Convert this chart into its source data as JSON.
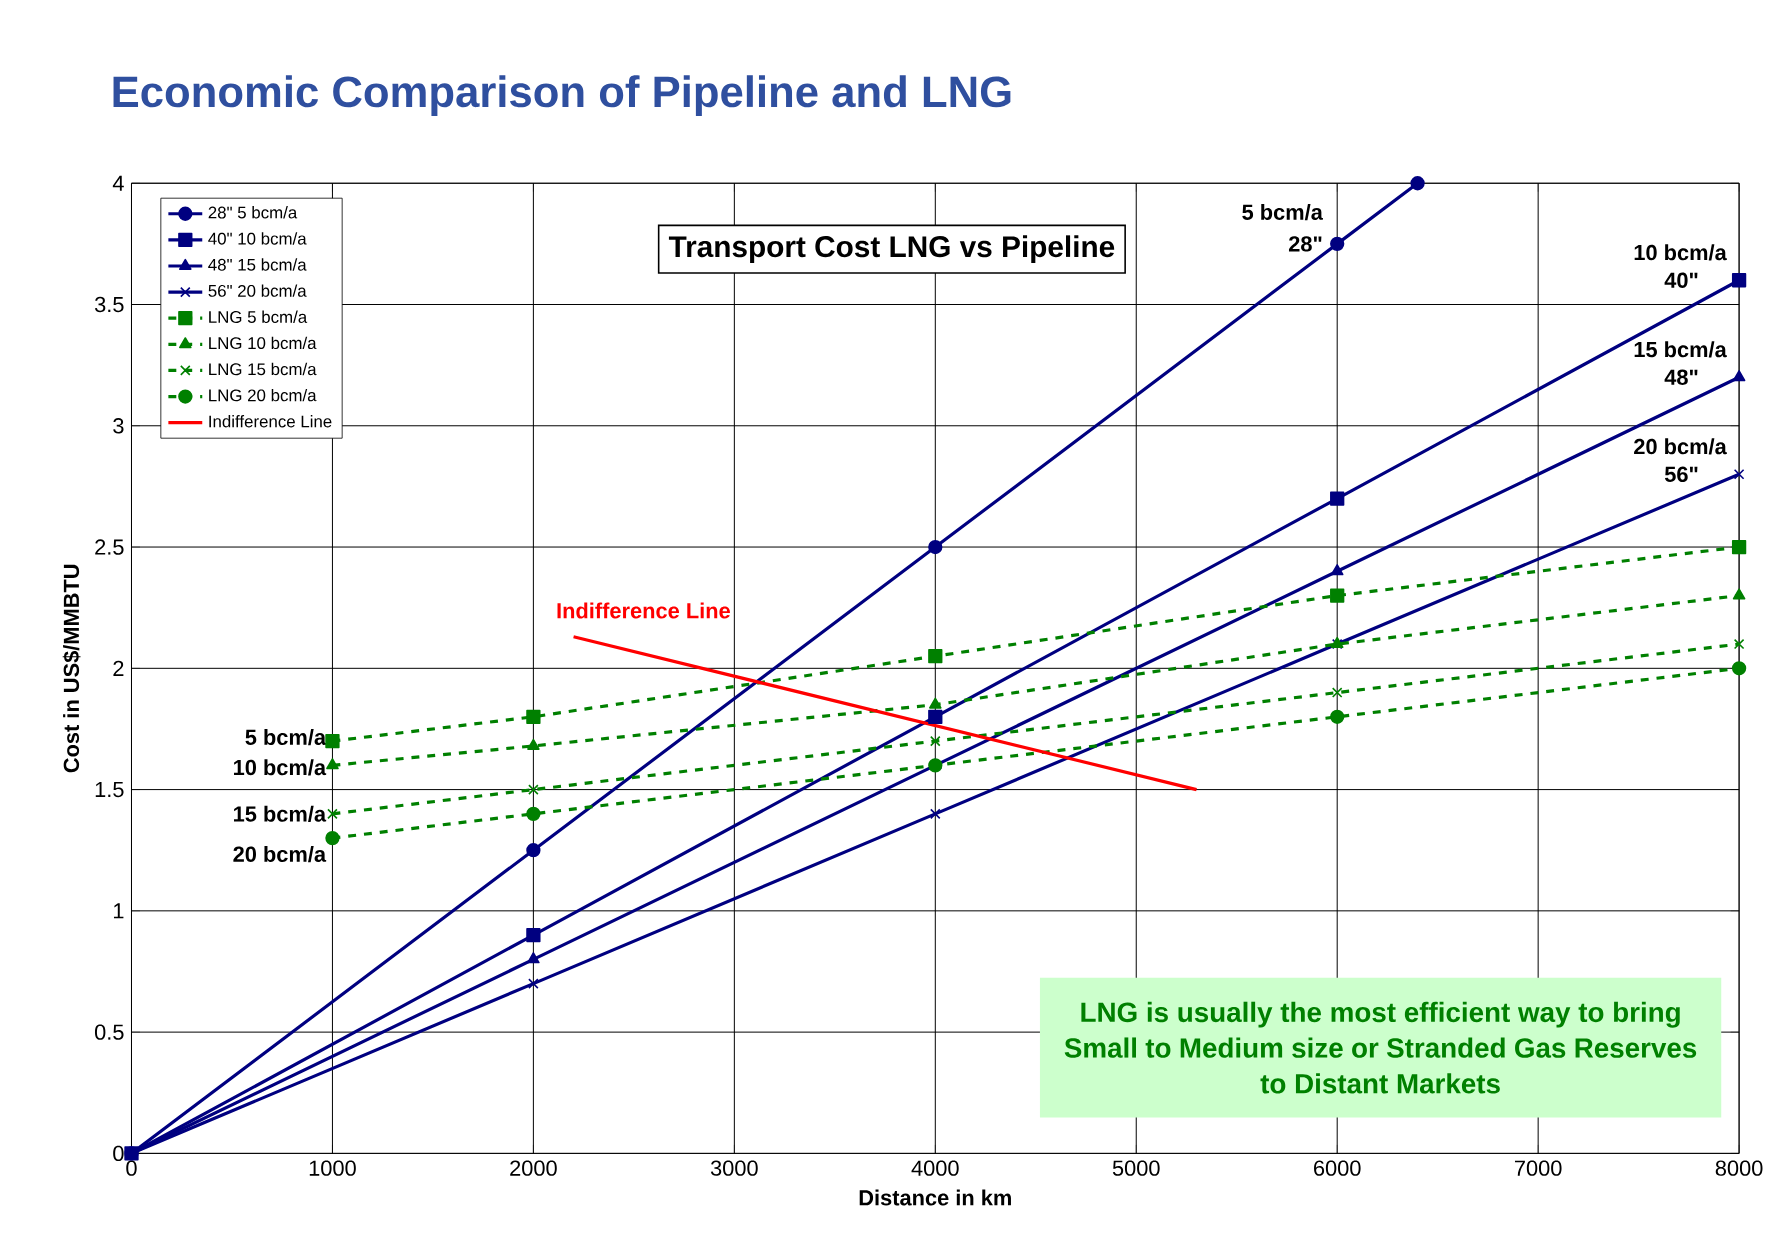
{
  "chart_data": {
    "type": "line",
    "title": "Economic Comparison of Pipeline and LNG",
    "subtitle": "Transport Cost LNG vs Pipeline",
    "xlabel": "Distance in km",
    "ylabel": "Cost in US$/MMBTU",
    "xlim": [
      0,
      8000
    ],
    "ylim": [
      0,
      4
    ],
    "xticks": [
      0,
      1000,
      2000,
      3000,
      4000,
      5000,
      6000,
      7000,
      8000
    ],
    "yticks": [
      0,
      0.5,
      1,
      1.5,
      2,
      2.5,
      3,
      3.5,
      4
    ],
    "grid": true,
    "legend": "top left",
    "series": [
      {
        "name": "28\" 5 bcm/a",
        "color": "#000080",
        "marker": "circle",
        "line_style": "solid",
        "x": [
          0,
          2000,
          4000,
          6000,
          6400
        ],
        "values": [
          0,
          1.25,
          2.5,
          3.75,
          4.0
        ]
      },
      {
        "name": "40\" 10 bcm/a",
        "color": "#000080",
        "marker": "square",
        "line_style": "solid",
        "x": [
          0,
          2000,
          4000,
          6000,
          8000
        ],
        "values": [
          0,
          0.9,
          1.8,
          2.7,
          3.6
        ]
      },
      {
        "name": "48\" 15 bcm/a",
        "color": "#000080",
        "marker": "triangle",
        "line_style": "solid",
        "x": [
          0,
          2000,
          4000,
          6000,
          8000
        ],
        "values": [
          0,
          0.8,
          1.6,
          2.4,
          3.2
        ]
      },
      {
        "name": "56\" 20 bcm/a",
        "color": "#000080",
        "marker": "cross",
        "line_style": "solid",
        "x": [
          0,
          2000,
          4000,
          6000,
          8000
        ],
        "values": [
          0,
          0.7,
          1.4,
          2.1,
          2.8
        ]
      },
      {
        "name": "LNG 5 bcm/a",
        "color": "#008000",
        "marker": "square",
        "line_style": "dashed",
        "x": [
          1000,
          2000,
          4000,
          6000,
          8000
        ],
        "values": [
          1.7,
          1.8,
          2.05,
          2.3,
          2.5
        ]
      },
      {
        "name": "LNG 10 bcm/a",
        "color": "#008000",
        "marker": "triangle",
        "line_style": "dashed",
        "x": [
          1000,
          2000,
          4000,
          6000,
          8000
        ],
        "values": [
          1.6,
          1.68,
          1.85,
          2.1,
          2.3
        ]
      },
      {
        "name": "LNG 15 bcm/a",
        "color": "#008000",
        "marker": "cross",
        "line_style": "dashed",
        "x": [
          1000,
          2000,
          4000,
          6000,
          8000
        ],
        "values": [
          1.4,
          1.5,
          1.7,
          1.9,
          2.1
        ]
      },
      {
        "name": "LNG 20 bcm/a",
        "color": "#008000",
        "marker": "circle",
        "line_style": "dashed",
        "x": [
          1000,
          2000,
          4000,
          6000,
          8000
        ],
        "values": [
          1.3,
          1.4,
          1.6,
          1.8,
          2.0
        ]
      },
      {
        "name": "Indifference Line",
        "color": "#ff0000",
        "marker": "none",
        "line_style": "solid",
        "x": [
          2200,
          5300
        ],
        "values": [
          2.13,
          1.5
        ]
      }
    ],
    "annotations": [
      {
        "text": "Indifference Line",
        "x": 2200,
        "y": 2.13
      },
      {
        "text": "5 bcm/a",
        "x": 1000,
        "y": 1.7
      },
      {
        "text": "10 bcm/a",
        "x": 1000,
        "y": 1.6
      },
      {
        "text": "15 bcm/a",
        "x": 1000,
        "y": 1.4
      },
      {
        "text": "20 bcm/a",
        "x": 1000,
        "y": 1.3
      },
      {
        "text": "5 bcm/a",
        "x": 6000,
        "y": 3.75
      },
      {
        "text": "28\"",
        "x": 6000,
        "y": 3.75
      },
      {
        "text": "10 bcm/a",
        "x": 8000,
        "y": 3.6
      },
      {
        "text": "40\"",
        "x": 8000,
        "y": 3.6
      },
      {
        "text": "15 bcm/a",
        "x": 8000,
        "y": 3.2
      },
      {
        "text": "48\"",
        "x": 8000,
        "y": 3.2
      },
      {
        "text": "20 bcm/a",
        "x": 8000,
        "y": 2.8
      },
      {
        "text": "56\"",
        "x": 8000,
        "y": 2.8
      },
      "LNG is usually the most efficient way to bring Small to Medium size or Stranded Gas Reserves to Distant Markets"
    ]
  }
}
